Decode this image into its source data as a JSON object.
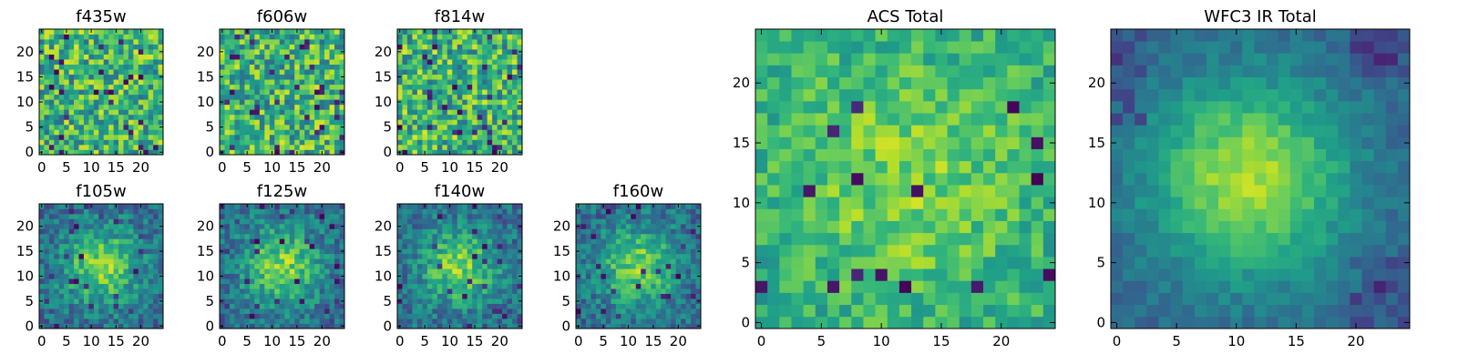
{
  "chart_data": [
    {
      "type": "heatmap",
      "title": "f435w",
      "xticks": [
        0,
        5,
        10,
        15,
        20
      ],
      "yticks": [
        0,
        5,
        10,
        15,
        20
      ],
      "xlim": [
        -0.5,
        24.5
      ],
      "ylim": [
        -0.5,
        24.5
      ],
      "grid": false,
      "colormap": "viridis",
      "grid_size": [
        25,
        25
      ],
      "pattern": "noise"
    },
    {
      "type": "heatmap",
      "title": "f606w",
      "xticks": [
        0,
        5,
        10,
        15,
        20
      ],
      "yticks": [
        0,
        5,
        10,
        15,
        20
      ],
      "xlim": [
        -0.5,
        24.5
      ],
      "ylim": [
        -0.5,
        24.5
      ],
      "grid": false,
      "colormap": "viridis",
      "grid_size": [
        25,
        25
      ],
      "pattern": "noise"
    },
    {
      "type": "heatmap",
      "title": "f814w",
      "xticks": [
        0,
        5,
        10,
        15,
        20
      ],
      "yticks": [
        0,
        5,
        10,
        15,
        20
      ],
      "xlim": [
        -0.5,
        24.5
      ],
      "ylim": [
        -0.5,
        24.5
      ],
      "grid": false,
      "colormap": "viridis",
      "grid_size": [
        25,
        25
      ],
      "pattern": "noise"
    },
    {
      "type": "heatmap",
      "title": "f105w",
      "xticks": [
        0,
        5,
        10,
        15,
        20
      ],
      "yticks": [
        0,
        5,
        10,
        15,
        20
      ],
      "xlim": [
        -0.5,
        24.5
      ],
      "ylim": [
        -0.5,
        24.5
      ],
      "grid": false,
      "colormap": "viridis",
      "grid_size": [
        25,
        25
      ],
      "pattern": "blob"
    },
    {
      "type": "heatmap",
      "title": "f125w",
      "xticks": [
        0,
        5,
        10,
        15,
        20
      ],
      "yticks": [
        0,
        5,
        10,
        15,
        20
      ],
      "xlim": [
        -0.5,
        24.5
      ],
      "ylim": [
        -0.5,
        24.5
      ],
      "grid": false,
      "colormap": "viridis",
      "grid_size": [
        25,
        25
      ],
      "pattern": "blob"
    },
    {
      "type": "heatmap",
      "title": "f140w",
      "xticks": [
        0,
        5,
        10,
        15,
        20
      ],
      "yticks": [
        0,
        5,
        10,
        15,
        20
      ],
      "xlim": [
        -0.5,
        24.5
      ],
      "ylim": [
        -0.5,
        24.5
      ],
      "grid": false,
      "colormap": "viridis",
      "grid_size": [
        25,
        25
      ],
      "pattern": "blob"
    },
    {
      "type": "heatmap",
      "title": "f160w",
      "xticks": [
        0,
        5,
        10,
        15,
        20
      ],
      "yticks": [
        0,
        5,
        10,
        15,
        20
      ],
      "xlim": [
        -0.5,
        24.5
      ],
      "ylim": [
        -0.5,
        24.5
      ],
      "grid": false,
      "colormap": "viridis",
      "grid_size": [
        25,
        25
      ],
      "pattern": "blob"
    },
    {
      "type": "heatmap",
      "title": "ACS Total",
      "xticks": [
        0,
        5,
        10,
        15,
        20
      ],
      "yticks": [
        0,
        5,
        10,
        15,
        20
      ],
      "xlim": [
        -0.5,
        24.5
      ],
      "ylim": [
        -0.5,
        24.5
      ],
      "grid": false,
      "colormap": "viridis",
      "grid_size": [
        25,
        25
      ],
      "pattern": "total"
    },
    {
      "type": "heatmap",
      "title": "WFC3 IR Total",
      "xticks": [
        0,
        5,
        10,
        15,
        20
      ],
      "yticks": [
        0,
        5,
        10,
        15,
        20
      ],
      "xlim": [
        -0.5,
        24.5
      ],
      "ylim": [
        -0.5,
        24.5
      ],
      "grid": false,
      "colormap": "viridis",
      "grid_size": [
        25,
        25
      ],
      "pattern": "total-ir"
    }
  ]
}
